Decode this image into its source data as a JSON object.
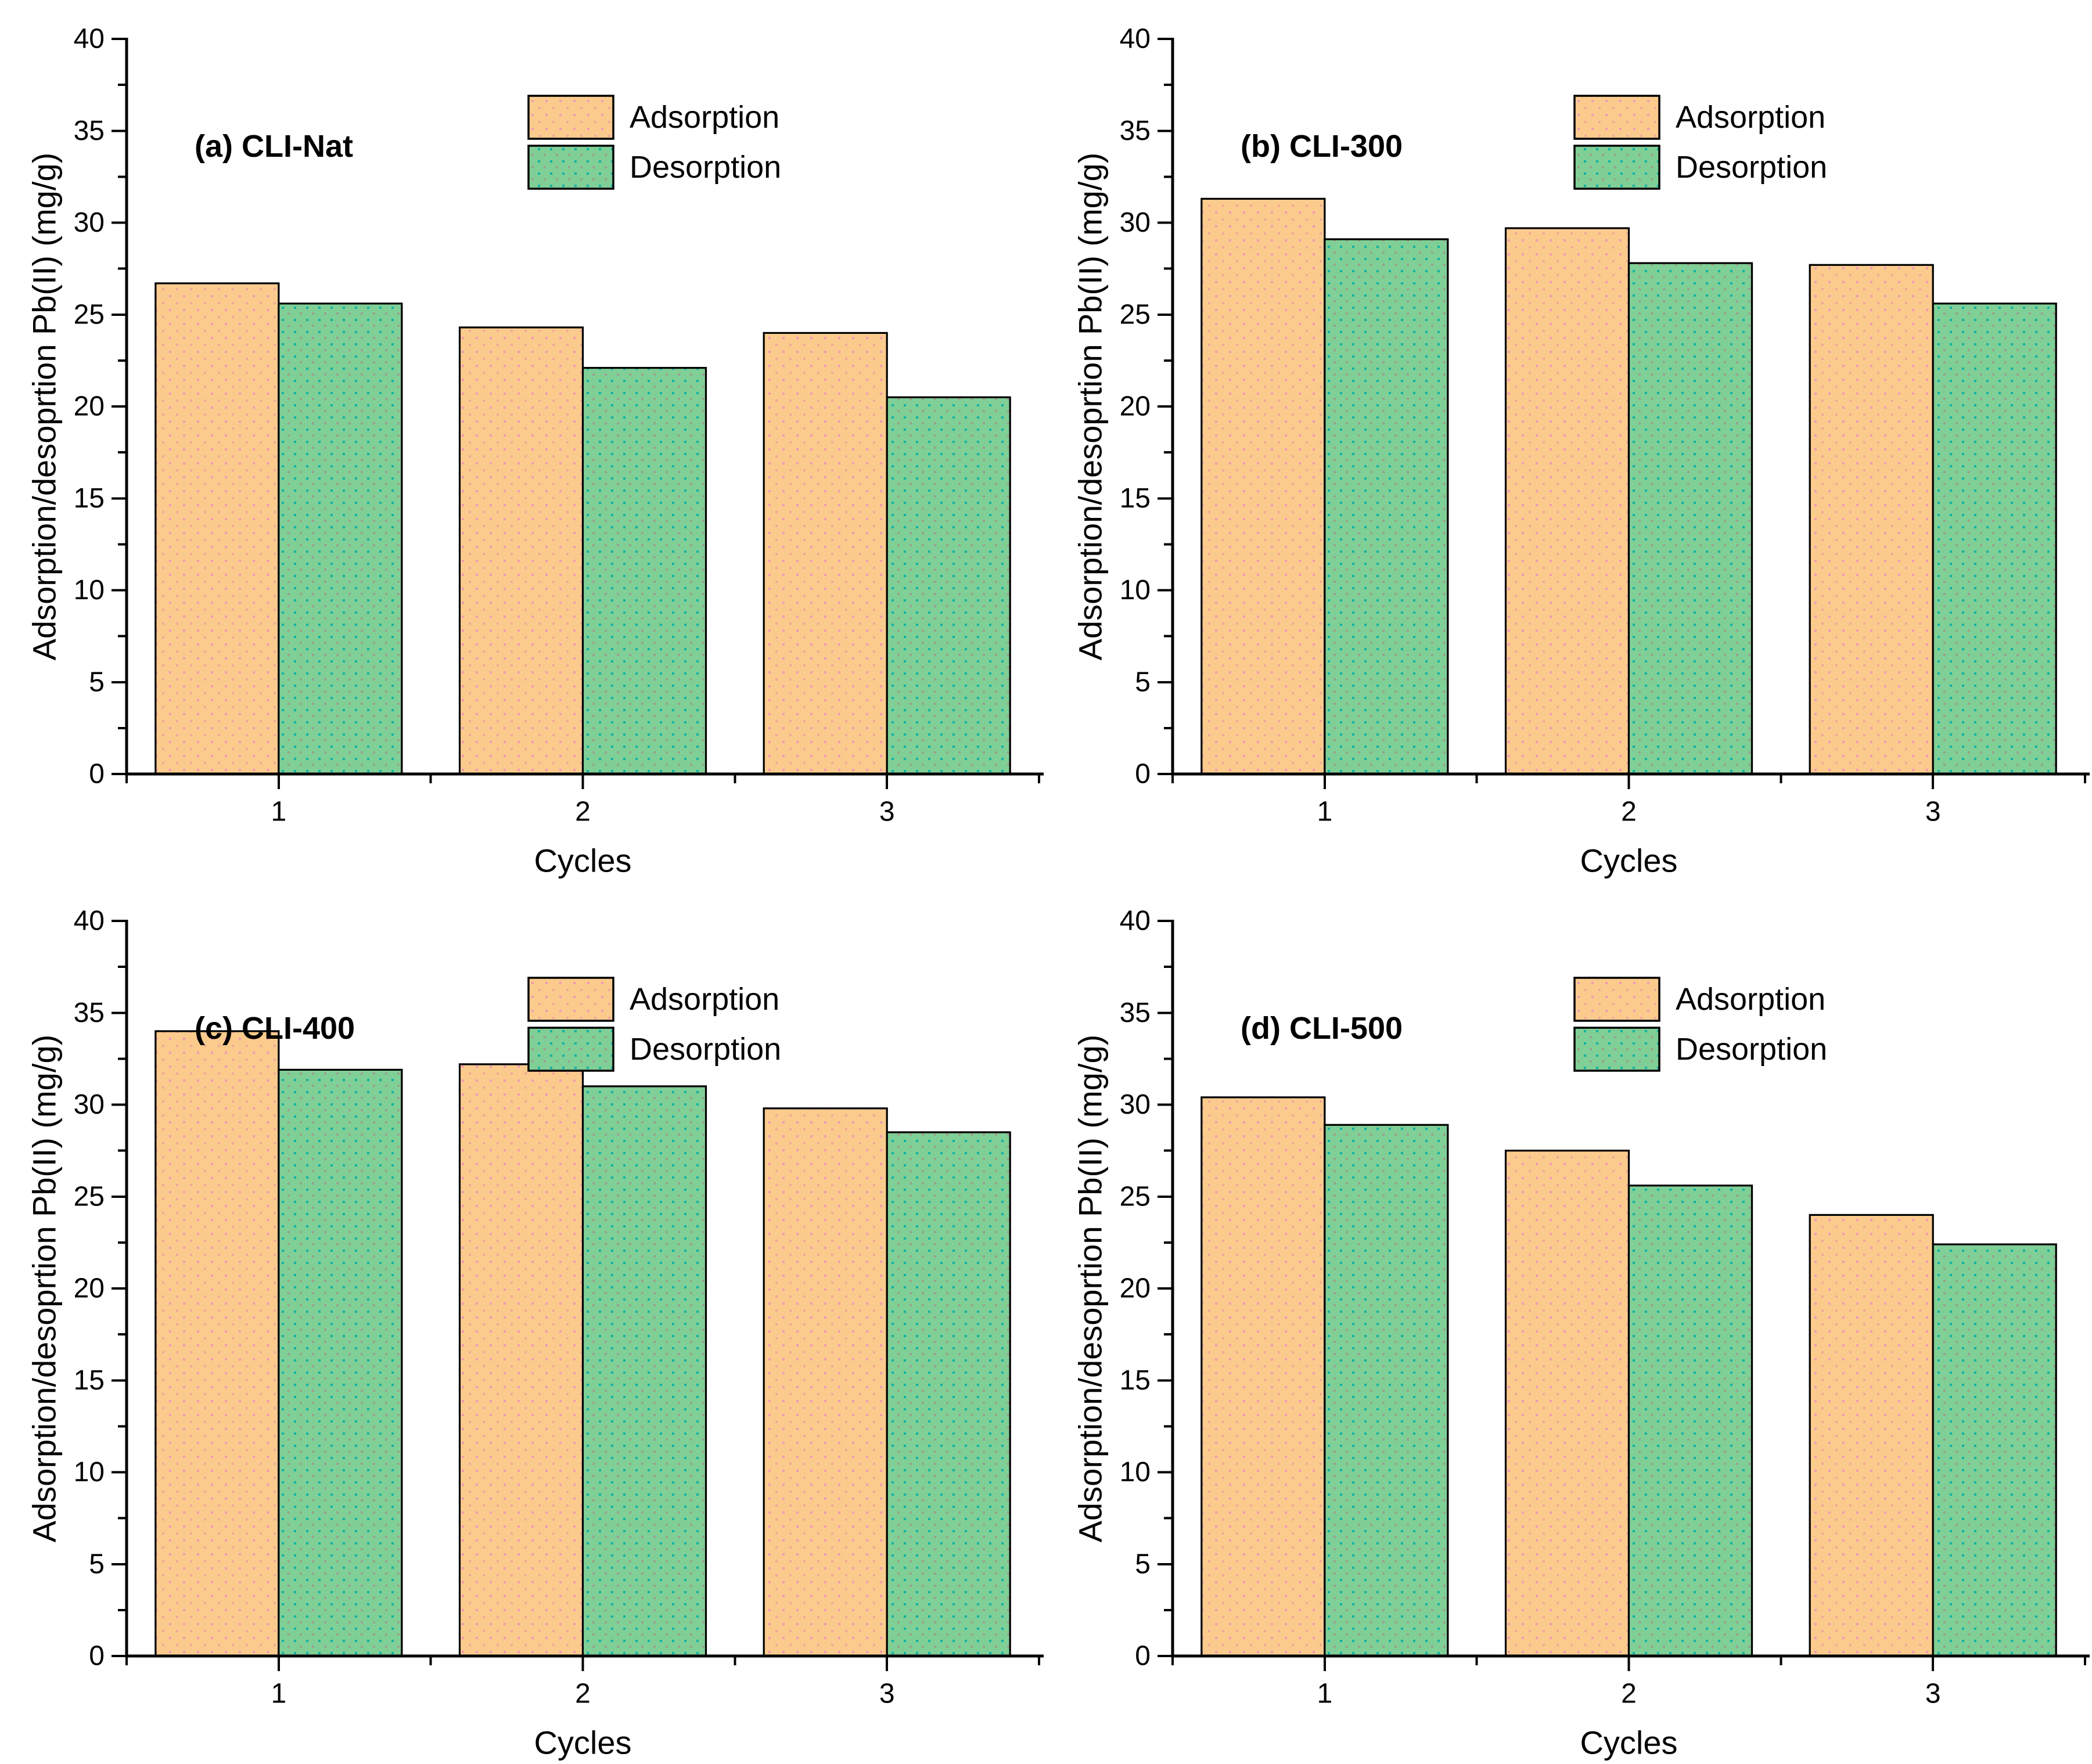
{
  "figure": {
    "background": "#ffffff",
    "text_color": "#000000",
    "axis_color": "#000000",
    "legend_labels": [
      "Adsorption",
      "Desorption"
    ],
    "series_styles": {
      "adsorption": {
        "fill": "#FBCB8E",
        "edge": "#000000",
        "dot_colors": [
          "#F09CB4",
          "#F0A49E"
        ]
      },
      "desorption": {
        "fill": "#80CF96",
        "edge": "#000000",
        "dot_colors": [
          "#12B3A6",
          "#9C9F8C"
        ]
      }
    }
  },
  "chart_data": [
    {
      "id": "a",
      "type": "bar",
      "panel_label": "(a) CLI-Nat",
      "xlabel": "Cycles",
      "ylabel": "Adsorption/desoprtion Pb(II) (mg/g)",
      "categories": [
        "1",
        "2",
        "3"
      ],
      "ylim": [
        0,
        40
      ],
      "ytick_step": 5,
      "yminor_step": 2.5,
      "xminor_step": 0.5,
      "grid": false,
      "legend_position": "top-center",
      "series": [
        {
          "name": "Adsorption",
          "key": "adsorption",
          "values": [
            26.7,
            24.3,
            24.0
          ]
        },
        {
          "name": "Desorption",
          "key": "desorption",
          "values": [
            25.6,
            22.1,
            20.5
          ]
        }
      ]
    },
    {
      "id": "b",
      "type": "bar",
      "panel_label": "(b) CLI-300",
      "xlabel": "Cycles",
      "ylabel": "Adsorption/desoprtion Pb(II) (mg/g)",
      "categories": [
        "1",
        "2",
        "3"
      ],
      "ylim": [
        0,
        40
      ],
      "ytick_step": 5,
      "yminor_step": 2.5,
      "xminor_step": 0.5,
      "grid": false,
      "legend_position": "top-center",
      "series": [
        {
          "name": "Adsorption",
          "key": "adsorption",
          "values": [
            31.3,
            29.7,
            27.7
          ]
        },
        {
          "name": "Desorption",
          "key": "desorption",
          "values": [
            29.1,
            27.8,
            25.6
          ]
        }
      ]
    },
    {
      "id": "c",
      "type": "bar",
      "panel_label": "(c) CLI-400",
      "xlabel": "Cycles",
      "ylabel": "Adsorption/desoprtion Pb(II) (mg/g)",
      "categories": [
        "1",
        "2",
        "3"
      ],
      "ylim": [
        0,
        40
      ],
      "ytick_step": 5,
      "yminor_step": 2.5,
      "xminor_step": 0.5,
      "grid": false,
      "legend_position": "top-center",
      "series": [
        {
          "name": "Adsorption",
          "key": "adsorption",
          "values": [
            34.0,
            32.2,
            29.8
          ]
        },
        {
          "name": "Desorption",
          "key": "desorption",
          "values": [
            31.9,
            31.0,
            28.5
          ]
        }
      ]
    },
    {
      "id": "d",
      "type": "bar",
      "panel_label": "(d) CLI-500",
      "xlabel": "Cycles",
      "ylabel": "Adsorption/desoprtion Pb(II) (mg/g)",
      "categories": [
        "1",
        "2",
        "3"
      ],
      "ylim": [
        0,
        40
      ],
      "ytick_step": 5,
      "yminor_step": 2.5,
      "xminor_step": 0.5,
      "grid": false,
      "legend_position": "top-center",
      "series": [
        {
          "name": "Adsorption",
          "key": "adsorption",
          "values": [
            30.4,
            27.5,
            24.0
          ]
        },
        {
          "name": "Desorption",
          "key": "desorption",
          "values": [
            28.9,
            25.6,
            22.4
          ]
        }
      ]
    }
  ]
}
